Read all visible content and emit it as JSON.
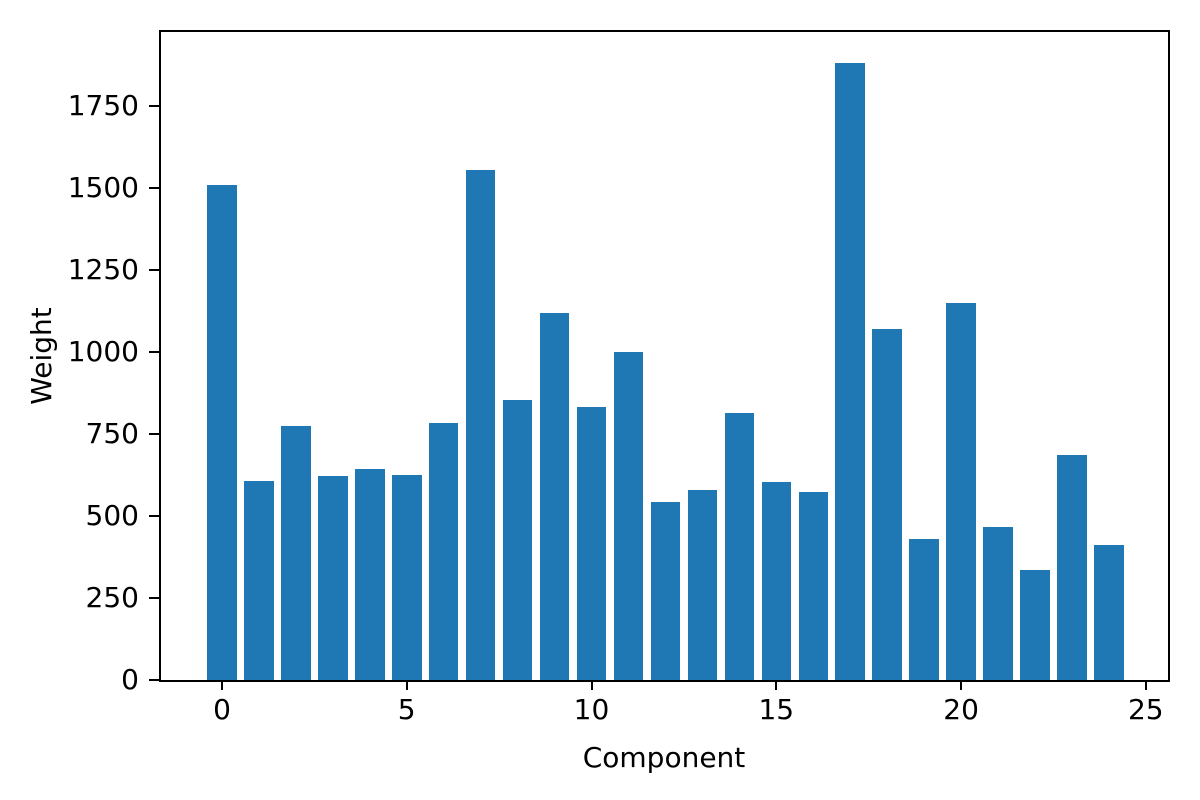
{
  "chart_data": {
    "type": "bar",
    "title": "",
    "xlabel": "Component",
    "ylabel": "Weight",
    "categories": [
      0,
      1,
      2,
      3,
      4,
      5,
      6,
      7,
      8,
      9,
      10,
      11,
      12,
      13,
      14,
      15,
      16,
      17,
      18,
      19,
      20,
      21,
      22,
      23,
      24
    ],
    "values": [
      1507,
      607,
      774,
      622,
      643,
      625,
      784,
      1554,
      853,
      1118,
      833,
      998,
      542,
      580,
      813,
      604,
      573,
      1881,
      1068,
      430,
      1150,
      465,
      336,
      687,
      412
    ],
    "xticks": [
      0,
      5,
      10,
      15,
      20,
      25
    ],
    "yticks": [
      0,
      250,
      500,
      750,
      1000,
      1250,
      1500,
      1750
    ],
    "xlim": [
      -1.65,
      25.6
    ],
    "ylim": [
      0,
      1974
    ],
    "bar_width": 0.8,
    "bar_color": "#1f77b4",
    "grid": false,
    "legend_position": "none",
    "background_color": "#ffffff",
    "spine_color": "#000000",
    "text_color": "#000000"
  }
}
